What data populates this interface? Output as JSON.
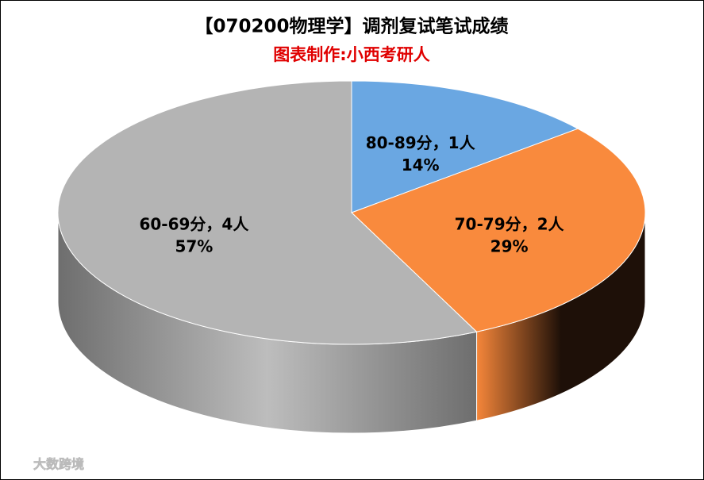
{
  "chart_data": {
    "type": "pie",
    "title": "【070200物理学】调剂复试笔试成绩",
    "subtitle": "图表制作:小西考研人",
    "categories": [
      "80-89分，1人",
      "70-79分，2人",
      "60-69分，4人"
    ],
    "values": [
      14,
      29,
      57
    ],
    "value_labels": [
      "14%",
      "29%",
      "57%"
    ],
    "colors": [
      "#6aa7e2",
      "#f98a3d",
      "#b4b4b4"
    ],
    "side_colors": [
      [
        "#3f6f9e",
        "#6aa7e2"
      ],
      [
        "#f5863a",
        "#1e1008"
      ],
      [
        "#6e6e6e",
        "#bdbdbd"
      ]
    ],
    "watermark": "大数跨境"
  }
}
